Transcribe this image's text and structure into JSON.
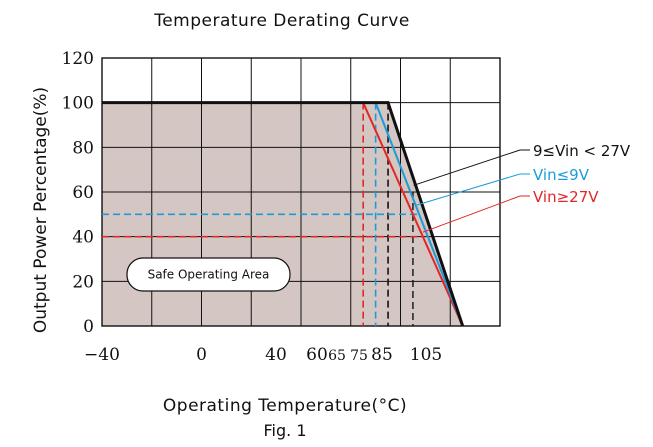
{
  "chart_data": {
    "type": "line",
    "title": "Temperature Derating Curve",
    "xlabel": "Operating Temperature(°C)",
    "ylabel": "Output Power Percentage(%)",
    "xlim": [
      -40,
      120
    ],
    "ylim": [
      0,
      120
    ],
    "x_ticks": [
      {
        "value": -40,
        "label": "−40"
      },
      {
        "value": 0,
        "label": "0"
      },
      {
        "value": 40,
        "label": "40"
      },
      {
        "value": 60,
        "label": "60"
      },
      {
        "value": 65,
        "label": "65"
      },
      {
        "value": 75,
        "label": "75"
      },
      {
        "value": 85,
        "label": "85"
      },
      {
        "value": 105,
        "label": "105"
      }
    ],
    "y_ticks": [
      0,
      20,
      40,
      60,
      80,
      100,
      120
    ],
    "grid": true,
    "series": [
      {
        "name": "9≤Vin < 27V",
        "color": "#111111",
        "x": [
          -40,
          75,
          105
        ],
        "y": [
          100,
          100,
          0
        ],
        "knee_y": 60
      },
      {
        "name": "Vin≤9V",
        "color": "#1e9bd7",
        "x": [
          -40,
          70,
          105
        ],
        "y": [
          100,
          100,
          0
        ],
        "knee_y": 50
      },
      {
        "name": "Vin≥27V",
        "color": "#e32626",
        "x": [
          -40,
          65,
          105
        ],
        "y": [
          100,
          100,
          0
        ],
        "knee_y": 40
      }
    ],
    "annotation": "Safe Operating Area",
    "caption": "Fig. 1"
  }
}
